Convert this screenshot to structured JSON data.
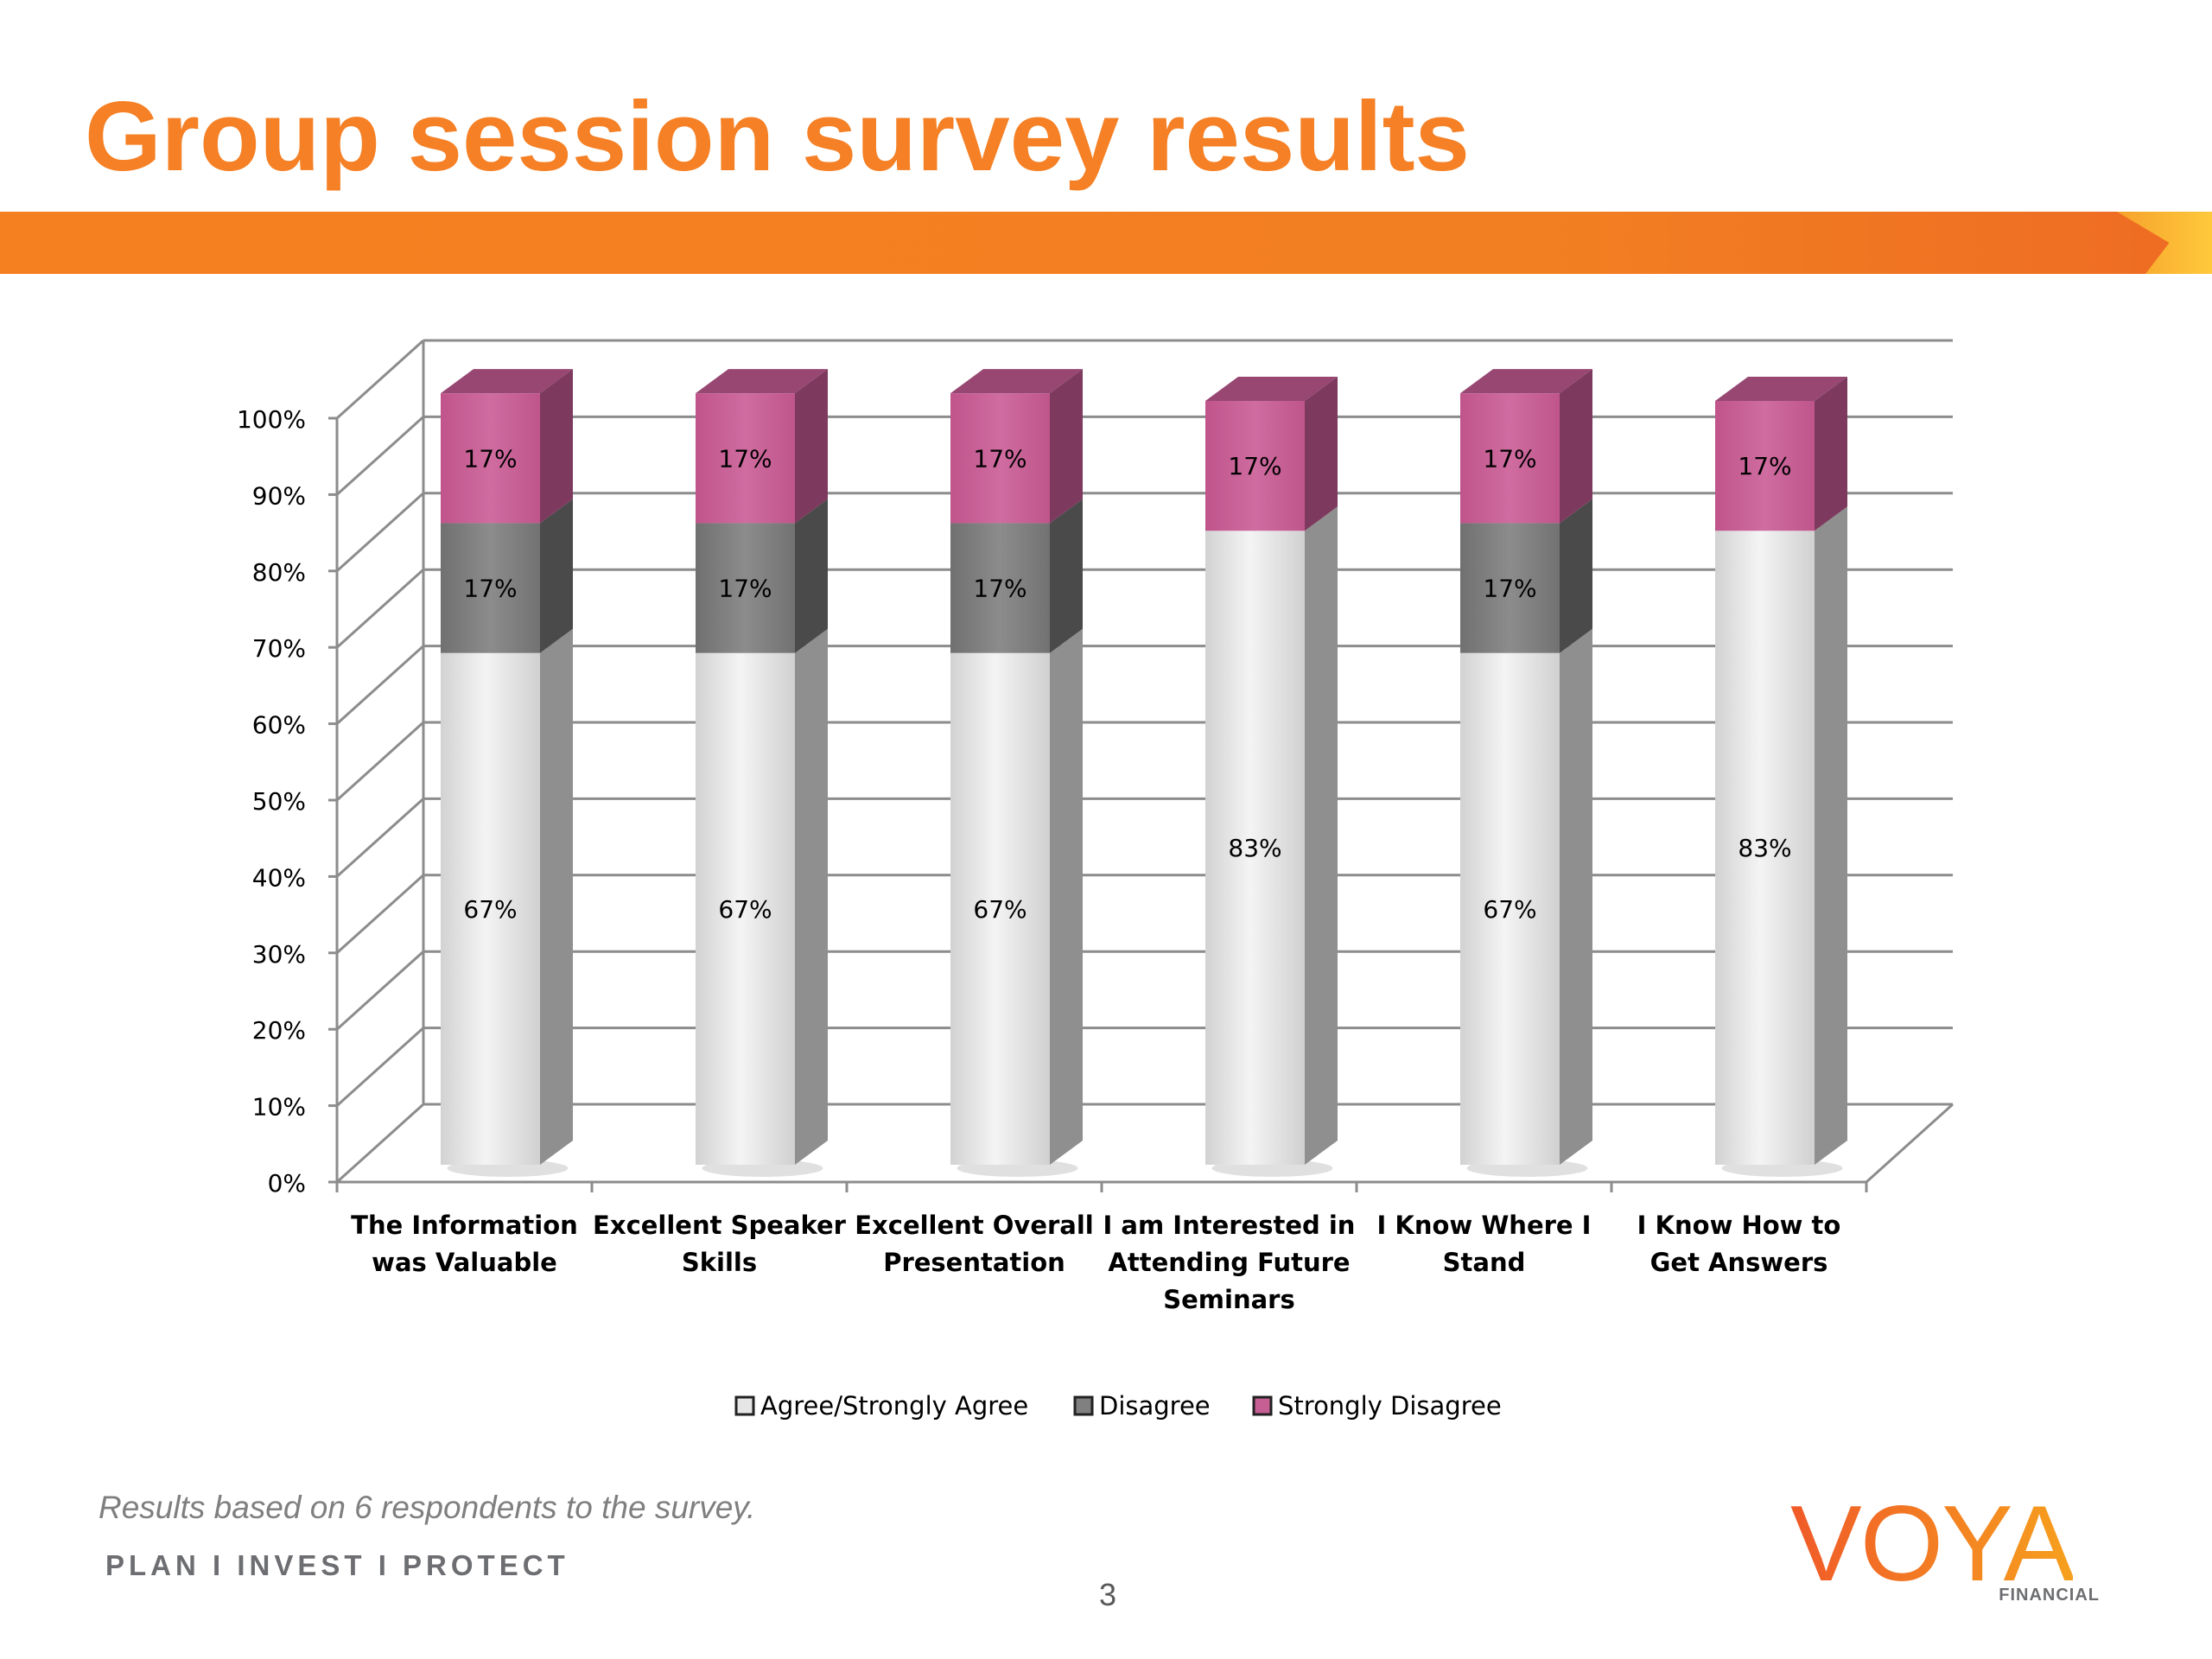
{
  "slide": {
    "title": "Group session survey results",
    "footnote": "Results based on 6 respondents to the survey.",
    "tagline": "PLAN  I  INVEST  I  PROTECT",
    "page_number": "3",
    "logo": {
      "word": "VOYA",
      "sub": "FINANCIAL"
    }
  },
  "colors": {
    "brand_orange": "#F58025",
    "agree": "#E6E6E6",
    "disagree": "#808080",
    "strongly_disagree": "#C65F93"
  },
  "chart_data": {
    "type": "bar",
    "stacked": true,
    "style": "3d",
    "categories": [
      [
        "The Information",
        "was Valuable"
      ],
      [
        "Excellent Speaker",
        "Skills"
      ],
      [
        "Excellent Overall",
        "Presentation"
      ],
      [
        "I am Interested in",
        "Attending Future",
        "Seminars"
      ],
      [
        "I Know Where I",
        "Stand"
      ],
      [
        "I Know How to",
        "Get Answers"
      ]
    ],
    "series": [
      {
        "name": "Agree/Strongly Agree",
        "values": [
          67,
          67,
          67,
          83,
          67,
          83
        ],
        "labels": [
          "67%",
          "67%",
          "67%",
          "83%",
          "67%",
          "83%"
        ]
      },
      {
        "name": "Disagree",
        "values": [
          17,
          17,
          17,
          0,
          17,
          0
        ],
        "labels": [
          "17%",
          "17%",
          "17%",
          "",
          "17%",
          ""
        ]
      },
      {
        "name": "Strongly Disagree",
        "values": [
          17,
          17,
          17,
          17,
          17,
          17
        ],
        "labels": [
          "17%",
          "17%",
          "17%",
          "17%",
          "17%",
          "17%"
        ]
      }
    ],
    "yticks": [
      "0%",
      "10%",
      "20%",
      "30%",
      "40%",
      "50%",
      "60%",
      "70%",
      "80%",
      "90%",
      "100%"
    ],
    "ylim": [
      0,
      100
    ],
    "grid": true,
    "legend": "bottom"
  }
}
